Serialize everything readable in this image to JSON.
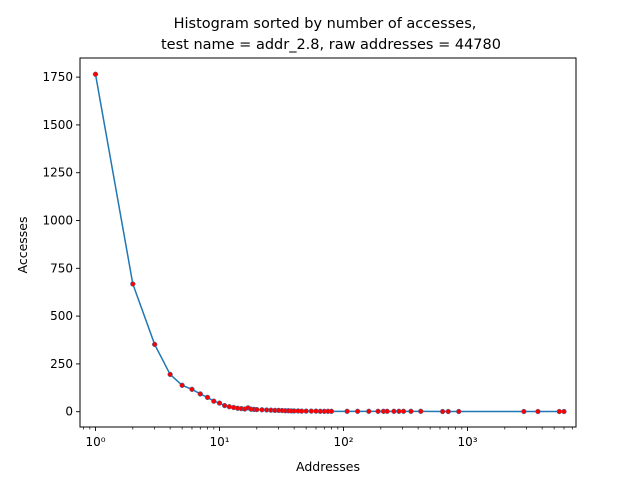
{
  "chart_data": {
    "type": "line",
    "title": "Histogram sorted by number of accesses,",
    "subtitle": "test name = addr_2.8, raw addresses = 44780",
    "xlabel": "Addresses",
    "ylabel": "Accesses",
    "xscale": "log",
    "xlim": [
      0.75,
      7500
    ],
    "ylim": [
      -80,
      1850
    ],
    "grid": false,
    "colors": {
      "line": "#1f77b4",
      "markers": "#ff0000",
      "marker_edge": "#1f77b4"
    },
    "yticks": [
      0,
      250,
      500,
      750,
      1000,
      1250,
      1500,
      1750
    ],
    "ytick_labels": [
      "0",
      "250",
      "500",
      "750",
      "1000",
      "1250",
      "1500",
      "1750"
    ],
    "xticks": [
      1,
      10,
      100,
      1000
    ],
    "xtick_labels": [
      "10⁰",
      "10¹",
      "10²",
      "10³"
    ],
    "series": [
      {
        "x": [
          1,
          2,
          3,
          4,
          5,
          6,
          7,
          8,
          9,
          10,
          11,
          12,
          13,
          14,
          15,
          16,
          17,
          18,
          19,
          20,
          22,
          24,
          26,
          28,
          30,
          32,
          34,
          36,
          38,
          40,
          43,
          46,
          50,
          55,
          60,
          65,
          70,
          75,
          80,
          107,
          130,
          160,
          190,
          210,
          225,
          255,
          280,
          305,
          350,
          420,
          630,
          700,
          850,
          2850,
          3700,
          5500,
          6000
        ],
        "y": [
          1765,
          668,
          352,
          195,
          138,
          117,
          93,
          75,
          55,
          45,
          32,
          26,
          22,
          18,
          16,
          14,
          20,
          13,
          12,
          11,
          10,
          9,
          8,
          7,
          7,
          6,
          5,
          5,
          4,
          4,
          4,
          3,
          3,
          3,
          3,
          2,
          2,
          2,
          2,
          2,
          2,
          2,
          2,
          2,
          2,
          2,
          2,
          2,
          2,
          2,
          1,
          1,
          1,
          1,
          1,
          1,
          1
        ]
      }
    ]
  }
}
